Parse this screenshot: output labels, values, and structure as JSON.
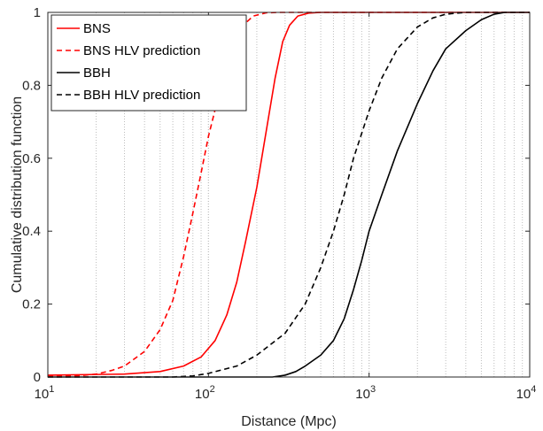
{
  "chart_data": {
    "type": "line",
    "xlabel": "Distance (Mpc)",
    "ylabel": "Cumulative distribution function",
    "xscale": "log",
    "xlim": [
      10,
      10000
    ],
    "ylim": [
      0,
      1
    ],
    "grid": "vertical-minor-dotted",
    "legend_position": "top-left",
    "x_ticks": [
      {
        "base": "10",
        "exp": "1",
        "value": 10
      },
      {
        "base": "10",
        "exp": "2",
        "value": 100
      },
      {
        "base": "10",
        "exp": "3",
        "value": 1000
      },
      {
        "base": "10",
        "exp": "4",
        "value": 10000
      }
    ],
    "y_ticks": [
      "0",
      "0.2",
      "0.4",
      "0.6",
      "0.8",
      "1"
    ],
    "y_tick_values": [
      0,
      0.2,
      0.4,
      0.6,
      0.8,
      1
    ],
    "series": [
      {
        "name": "BNS",
        "color": "#ff0000",
        "dash": "solid",
        "points": [
          [
            10,
            0.005
          ],
          [
            20,
            0.007
          ],
          [
            30,
            0.008
          ],
          [
            50,
            0.015
          ],
          [
            70,
            0.03
          ],
          [
            90,
            0.055
          ],
          [
            110,
            0.1
          ],
          [
            130,
            0.17
          ],
          [
            150,
            0.26
          ],
          [
            170,
            0.37
          ],
          [
            200,
            0.52
          ],
          [
            230,
            0.68
          ],
          [
            260,
            0.82
          ],
          [
            290,
            0.92
          ],
          [
            320,
            0.965
          ],
          [
            360,
            0.99
          ],
          [
            420,
            0.998
          ],
          [
            500,
            1.0
          ],
          [
            10000,
            1.0
          ]
        ]
      },
      {
        "name": "BNS HLV prediction",
        "color": "#ff0000",
        "dash": "dashed",
        "points": [
          [
            10,
            0.002
          ],
          [
            15,
            0.003
          ],
          [
            20,
            0.008
          ],
          [
            25,
            0.018
          ],
          [
            30,
            0.03
          ],
          [
            40,
            0.07
          ],
          [
            50,
            0.13
          ],
          [
            60,
            0.21
          ],
          [
            70,
            0.33
          ],
          [
            80,
            0.45
          ],
          [
            90,
            0.56
          ],
          [
            100,
            0.66
          ],
          [
            120,
            0.8
          ],
          [
            140,
            0.9
          ],
          [
            160,
            0.96
          ],
          [
            190,
            0.99
          ],
          [
            230,
            0.999
          ],
          [
            280,
            1.0
          ],
          [
            10000,
            1.0
          ]
        ]
      },
      {
        "name": "BBH",
        "color": "#000000",
        "dash": "solid",
        "points": [
          [
            10,
            0.0
          ],
          [
            250,
            0.0
          ],
          [
            300,
            0.005
          ],
          [
            350,
            0.015
          ],
          [
            400,
            0.03
          ],
          [
            500,
            0.06
          ],
          [
            600,
            0.1
          ],
          [
            700,
            0.16
          ],
          [
            800,
            0.24
          ],
          [
            900,
            0.32
          ],
          [
            1000,
            0.4
          ],
          [
            1200,
            0.5
          ],
          [
            1500,
            0.62
          ],
          [
            2000,
            0.75
          ],
          [
            2500,
            0.84
          ],
          [
            3000,
            0.9
          ],
          [
            4000,
            0.95
          ],
          [
            5000,
            0.98
          ],
          [
            6000,
            0.995
          ],
          [
            7000,
            1.0
          ],
          [
            10000,
            1.0
          ]
        ]
      },
      {
        "name": "BBH HLV prediction",
        "color": "#000000",
        "dash": "dashed",
        "points": [
          [
            10,
            0.0
          ],
          [
            60,
            0.0
          ],
          [
            80,
            0.003
          ],
          [
            100,
            0.01
          ],
          [
            150,
            0.03
          ],
          [
            200,
            0.06
          ],
          [
            300,
            0.12
          ],
          [
            400,
            0.2
          ],
          [
            500,
            0.3
          ],
          [
            600,
            0.4
          ],
          [
            700,
            0.5
          ],
          [
            800,
            0.6
          ],
          [
            1000,
            0.73
          ],
          [
            1200,
            0.82
          ],
          [
            1500,
            0.9
          ],
          [
            2000,
            0.96
          ],
          [
            2500,
            0.985
          ],
          [
            3000,
            0.995
          ],
          [
            4000,
            1.0
          ],
          [
            10000,
            1.0
          ]
        ]
      }
    ]
  }
}
